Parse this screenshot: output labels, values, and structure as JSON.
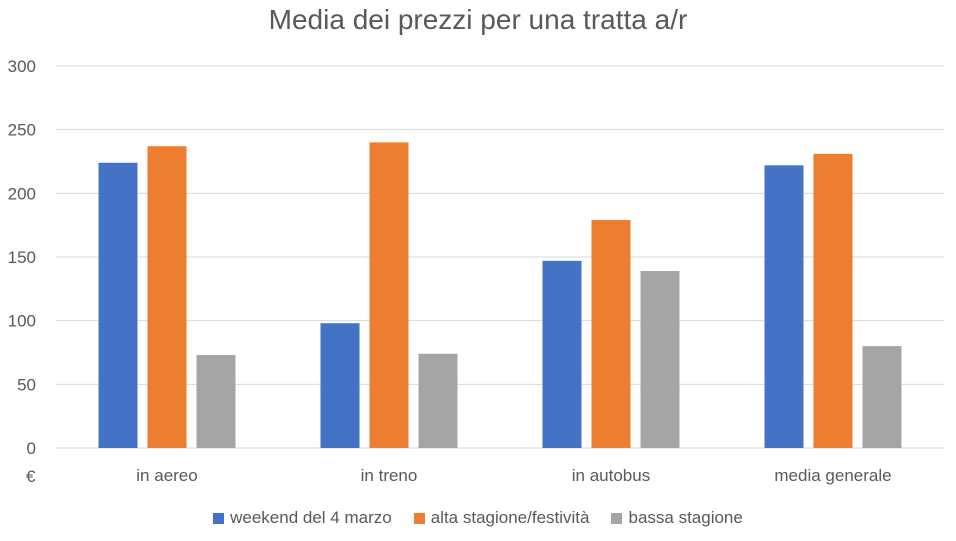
{
  "chart_data": {
    "type": "bar",
    "title": "Media dei prezzi per una tratta a/r",
    "xlabel": "",
    "ylabel": "€",
    "ylim": [
      0,
      300
    ],
    "yticks": [
      0,
      50,
      100,
      150,
      200,
      250,
      300
    ],
    "grid": true,
    "legend_position": "bottom",
    "categories": [
      "in aereo",
      "in treno",
      "in autobus",
      "media generale"
    ],
    "series": [
      {
        "name": "weekend del 4 marzo",
        "color": "#4472C4",
        "values": [
          224,
          98,
          147,
          222
        ]
      },
      {
        "name": "alta stagione/festività",
        "color": "#ED7D31",
        "values": [
          237,
          240,
          179,
          231
        ]
      },
      {
        "name": "bassa stagione",
        "color": "#A5A5A5",
        "values": [
          73,
          74,
          139,
          80
        ]
      }
    ]
  }
}
